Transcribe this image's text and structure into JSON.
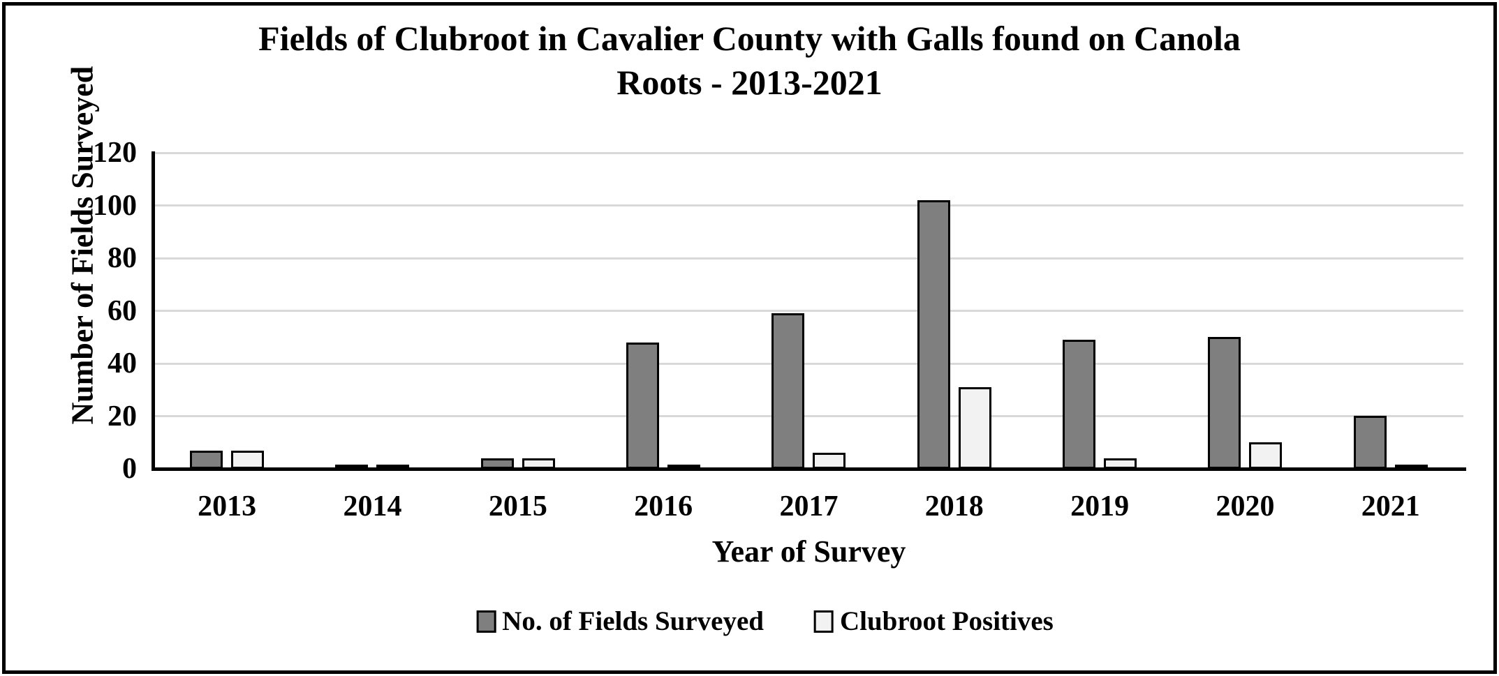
{
  "chart_data": {
    "type": "bar",
    "title": "Fields of Clubroot in Cavalier County with Galls found on Canola Roots - 2013-2021",
    "title_lines": [
      "Fields of Clubroot in Cavalier County with Galls found on Canola",
      "Roots - 2013-2021"
    ],
    "xlabel": "Year of Survey",
    "ylabel": "Number of Fields Surveyed",
    "categories": [
      "2013",
      "2014",
      "2015",
      "2016",
      "2017",
      "2018",
      "2019",
      "2020",
      "2021"
    ],
    "series": [
      {
        "name": "No. of Fields Surveyed",
        "color": "#7F7F7F",
        "values": [
          7,
          1,
          4,
          48,
          59,
          102,
          49,
          50,
          20
        ]
      },
      {
        "name": "Clubroot Positives",
        "color": "#F2F2F2",
        "values": [
          7,
          1,
          4,
          1,
          6,
          31,
          4,
          10,
          1
        ]
      }
    ],
    "ylim": [
      0,
      120
    ],
    "ytick_step": 20,
    "grid": "horizontal",
    "gridline_color": "#D9D9D9",
    "bar_border_color": "#000000",
    "axis_color": "#000000",
    "legend_position": "bottom"
  }
}
